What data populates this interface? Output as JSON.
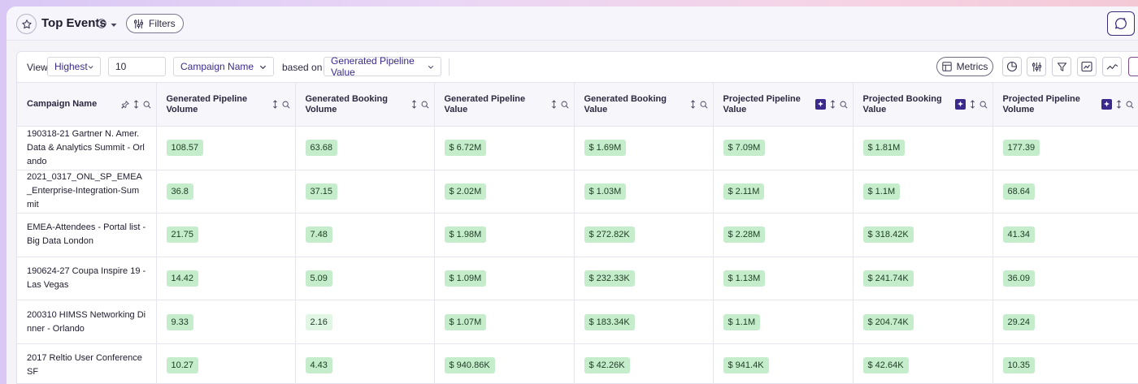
{
  "header": {
    "title": "Top Events",
    "filters_label": "Filters"
  },
  "toolbar": {
    "view_label": "View",
    "view_select": "Highest",
    "count_value": "10",
    "dimension_select": "Campaign Name",
    "based_on_label": "based on",
    "metric_select": "Generated Pipeline Value",
    "metrics_button": "Metrics"
  },
  "table": {
    "columns": [
      {
        "label": "Campaign Name",
        "pin": true,
        "ai": false
      },
      {
        "label": "Generated Pipeline Volume",
        "pin": false,
        "ai": false
      },
      {
        "label": "Generated Booking Volume",
        "pin": false,
        "ai": false
      },
      {
        "label": "Generated Pipeline Value",
        "pin": false,
        "ai": false
      },
      {
        "label": "Generated Booking Value",
        "pin": false,
        "ai": false
      },
      {
        "label": "Projected Pipeline Value",
        "pin": false,
        "ai": true
      },
      {
        "label": "Projected Booking Value",
        "pin": false,
        "ai": true
      },
      {
        "label": "Projected Pipeline Volume",
        "pin": false,
        "ai": true
      }
    ],
    "rows": [
      [
        "190318-21 Gartner N. Amer. Data & Analytics Summit - Orlando",
        "108.57",
        "63.68",
        "$ 6.72M",
        "$ 1.69M",
        "$ 7.09M",
        "$ 1.81M",
        "177.39"
      ],
      [
        "2021_0317_ONL_SP_EMEA_Enterprise-Integration-Summit",
        "36.8",
        "37.15",
        "$ 2.02M",
        "$ 1.03M",
        "$ 2.11M",
        "$ 1.1M",
        "68.64"
      ],
      [
        "EMEA-Attendees - Portal list - Big Data London",
        "21.75",
        "7.48",
        "$ 1.98M",
        "$ 272.82K",
        "$ 2.28M",
        "$ 318.42K",
        "41.34"
      ],
      [
        "190624-27 Coupa Inspire 19 - Las Vegas",
        "14.42",
        "5.09",
        "$ 1.09M",
        "$ 232.33K",
        "$ 1.13M",
        "$ 241.74K",
        "36.09"
      ],
      [
        "200310 HIMSS Networking Dinner - Orlando",
        "9.33",
        "2.16",
        "$ 1.07M",
        "$ 183.34K",
        "$ 1.1M",
        "$ 204.74K",
        "29.24"
      ],
      [
        "2017 Reltio User Conference SF",
        "10.27",
        "4.43",
        "$ 940.86K",
        "$ 42.26K",
        "$ 941.4K",
        "$ 42.64K",
        "10.35"
      ]
    ],
    "light_cells": [
      [
        4,
        2
      ]
    ]
  },
  "colors": {
    "pill_bg": "#c5edcc",
    "pill_light_bg": "#e2f6e5",
    "accent": "#3b2a8c"
  }
}
